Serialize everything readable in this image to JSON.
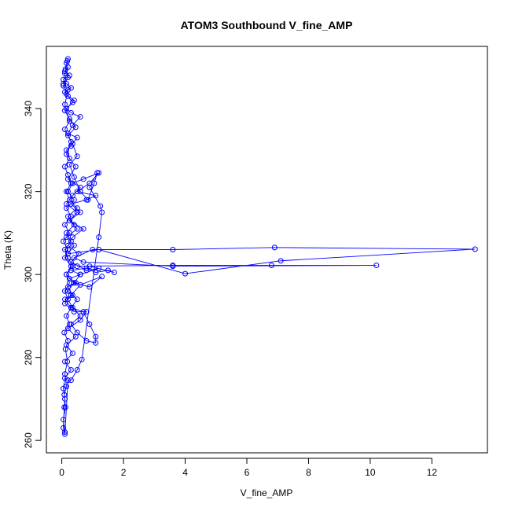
{
  "chart_data": {
    "type": "scatter",
    "title": "ATOM3 Southbound V_fine_AMP",
    "xlabel": "V_fine_AMP",
    "ylabel": "Theta (K)",
    "xlim": [
      -0.5,
      13.8
    ],
    "ylim": [
      257,
      355
    ],
    "xticks": [
      0,
      2,
      4,
      6,
      8,
      10,
      12
    ],
    "yticks": [
      260,
      280,
      300,
      320,
      340
    ],
    "grid": false,
    "legend": "none",
    "series_style": {
      "line": true,
      "markers": "open-circle"
    },
    "colors": {
      "series": "#0000ff",
      "axis": "#000000",
      "background": "#ffffff"
    },
    "series": [
      {
        "values_description": "",
        "points": [
          [
            0.1,
            262
          ],
          [
            0.05,
            265
          ],
          [
            0.12,
            268
          ],
          [
            0.08,
            271
          ],
          [
            0.15,
            273
          ],
          [
            0.1,
            276
          ],
          [
            0.18,
            279
          ],
          [
            0.12,
            282
          ],
          [
            0.2,
            284
          ],
          [
            0.08,
            286
          ],
          [
            0.25,
            288
          ],
          [
            0.15,
            290
          ],
          [
            0.3,
            292
          ],
          [
            0.1,
            294
          ],
          [
            0.35,
            295
          ],
          [
            0.2,
            297
          ],
          [
            0.45,
            298
          ],
          [
            0.25,
            299
          ],
          [
            0.6,
            300
          ],
          [
            0.3,
            301
          ],
          [
            0.8,
            301.5
          ],
          [
            1.1,
            300.5
          ],
          [
            1.5,
            301
          ],
          [
            1.7,
            300.5
          ],
          [
            0.9,
            302
          ],
          [
            0.5,
            302
          ],
          [
            3.6,
            302.2
          ],
          [
            6.8,
            302.2
          ],
          [
            10.2,
            302.2
          ],
          [
            3.6,
            302
          ],
          [
            0.7,
            303
          ],
          [
            0.4,
            304
          ],
          [
            1.0,
            306
          ],
          [
            3.6,
            306
          ],
          [
            6.9,
            306.5
          ],
          [
            13.4,
            306.1
          ],
          [
            7.1,
            303.3
          ],
          [
            4.0,
            300.2
          ],
          [
            1.2,
            306
          ],
          [
            0.2,
            305
          ],
          [
            0.4,
            307
          ],
          [
            0.15,
            309
          ],
          [
            0.5,
            311
          ],
          [
            0.25,
            313
          ],
          [
            0.6,
            315
          ],
          [
            0.3,
            317
          ],
          [
            0.8,
            318
          ],
          [
            1.1,
            319
          ],
          [
            0.5,
            320
          ],
          [
            0.9,
            322
          ],
          [
            1.2,
            324.5
          ],
          [
            0.7,
            323
          ],
          [
            0.35,
            322
          ],
          [
            0.2,
            320
          ],
          [
            0.4,
            318
          ],
          [
            0.15,
            316
          ],
          [
            0.3,
            314
          ],
          [
            0.1,
            312
          ],
          [
            0.25,
            310
          ],
          [
            0.05,
            308
          ],
          [
            0.2,
            306
          ],
          [
            0.1,
            304
          ],
          [
            0.3,
            302
          ],
          [
            0.15,
            300
          ],
          [
            0.4,
            298
          ],
          [
            0.2,
            296
          ],
          [
            0.5,
            294
          ],
          [
            0.3,
            292
          ],
          [
            0.7,
            291
          ],
          [
            0.9,
            288
          ],
          [
            1.1,
            285
          ],
          [
            1.1,
            283.5
          ],
          [
            0.8,
            284
          ],
          [
            0.5,
            286
          ],
          [
            0.3,
            288
          ],
          [
            0.6,
            290
          ],
          [
            0.35,
            292
          ],
          [
            0.2,
            294
          ],
          [
            0.1,
            296
          ],
          [
            0.25,
            298
          ],
          [
            0.15,
            300
          ],
          [
            0.35,
            302
          ],
          [
            0.2,
            304
          ],
          [
            0.1,
            306
          ],
          [
            0.3,
            308
          ],
          [
            0.15,
            310
          ],
          [
            0.4,
            312
          ],
          [
            0.2,
            314
          ],
          [
            0.5,
            316
          ],
          [
            0.25,
            318
          ],
          [
            0.15,
            320
          ],
          [
            0.3,
            322
          ],
          [
            0.2,
            324
          ],
          [
            0.1,
            326
          ],
          [
            0.25,
            328
          ],
          [
            0.15,
            330
          ],
          [
            0.3,
            331
          ],
          [
            0.5,
            333
          ],
          [
            0.2,
            334
          ],
          [
            0.35,
            336
          ],
          [
            0.6,
            338
          ],
          [
            0.3,
            339
          ],
          [
            0.15,
            340
          ],
          [
            0.4,
            342
          ],
          [
            0.2,
            343
          ],
          [
            0.1,
            344
          ],
          [
            0.3,
            345
          ],
          [
            0.15,
            346
          ],
          [
            0.05,
            347
          ],
          [
            0.25,
            348
          ],
          [
            0.1,
            349
          ],
          [
            0.2,
            350
          ],
          [
            0.15,
            351
          ],
          [
            0.2,
            352
          ],
          [
            0.1,
            348.5
          ],
          [
            0.05,
            346
          ],
          [
            0.2,
            344.5
          ],
          [
            0.1,
            341
          ],
          [
            0.25,
            337
          ],
          [
            0.1,
            335
          ],
          [
            0.3,
            332
          ],
          [
            0.15,
            329
          ],
          [
            0.45,
            326
          ],
          [
            0.2,
            323
          ],
          [
            0.6,
            321
          ],
          [
            0.35,
            319
          ],
          [
            0.15,
            317
          ],
          [
            0.5,
            315
          ],
          [
            0.25,
            313
          ],
          [
            0.7,
            311
          ],
          [
            0.35,
            309
          ],
          [
            0.2,
            307
          ],
          [
            0.55,
            305
          ],
          [
            0.3,
            303
          ],
          [
            0.8,
            301
          ],
          [
            1.2,
            301.5
          ],
          [
            0.6,
            300
          ],
          [
            0.4,
            298
          ],
          [
            0.9,
            297
          ],
          [
            1.3,
            299.5
          ],
          [
            0.6,
            297.5
          ],
          [
            0.3,
            295
          ],
          [
            0.1,
            293
          ],
          [
            0.4,
            291
          ],
          [
            0.8,
            291
          ],
          [
            0.6,
            289
          ],
          [
            0.2,
            287
          ],
          [
            0.45,
            285
          ],
          [
            0.15,
            283
          ],
          [
            0.35,
            281
          ],
          [
            0.1,
            279
          ],
          [
            0.3,
            277
          ],
          [
            0.1,
            275
          ],
          [
            0.05,
            272.5
          ],
          [
            0.1,
            270
          ],
          [
            0.08,
            268
          ],
          [
            0.05,
            263
          ],
          [
            0.1,
            261.5
          ],
          [
            0.2,
            274.5
          ],
          [
            0.3,
            274.5
          ],
          [
            0.5,
            277
          ],
          [
            0.65,
            279.5
          ],
          [
            1.2,
            309
          ],
          [
            1.3,
            315
          ],
          [
            1.25,
            316.5
          ],
          [
            0.9,
            321
          ],
          [
            1.15,
            324.5
          ],
          [
            1.05,
            322
          ],
          [
            0.85,
            318
          ],
          [
            0.6,
            320
          ],
          [
            0.4,
            323.5
          ],
          [
            0.25,
            326.5
          ],
          [
            0.5,
            328.5
          ],
          [
            0.35,
            331.5
          ],
          [
            0.2,
            333.5
          ],
          [
            0.45,
            335.5
          ],
          [
            0.25,
            337.5
          ],
          [
            0.1,
            339.5
          ],
          [
            0.35,
            341.5
          ],
          [
            0.15,
            343.5
          ],
          [
            0.05,
            345.5
          ],
          [
            0.2,
            347.5
          ],
          [
            0.12,
            349.5
          ],
          [
            0.18,
            351.5
          ]
        ]
      }
    ]
  }
}
